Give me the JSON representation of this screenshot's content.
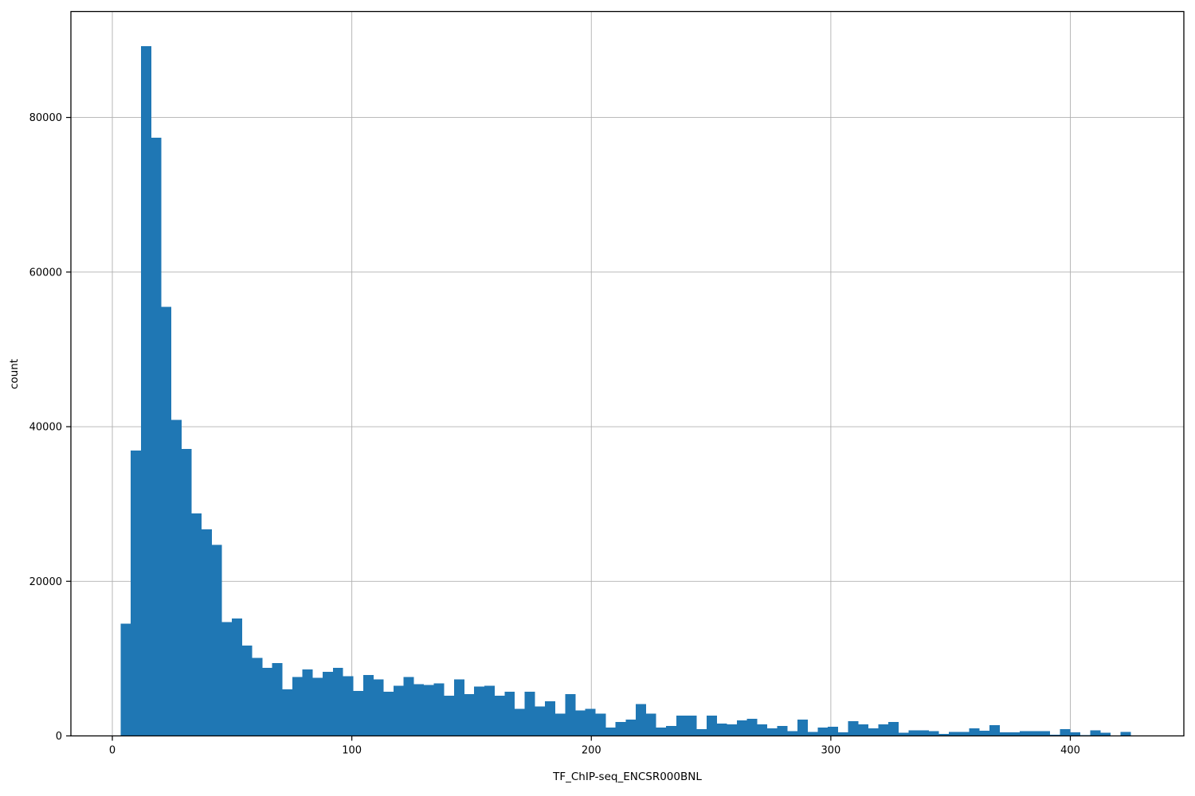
{
  "chart_data": {
    "type": "bar",
    "subtype": "histogram",
    "title": "",
    "xlabel": "TF_ChIP-seq_ENCSR000BNL",
    "ylabel": "count",
    "legend": null,
    "bar_color": "#1f77b4",
    "grid": true,
    "grid_color": "#b0b0b0",
    "spine_color": "#000000",
    "x_ticks": [
      0,
      100,
      200,
      300,
      400
    ],
    "y_ticks": [
      0,
      20000,
      40000,
      60000,
      80000
    ],
    "xlim": [
      -17.3,
      447.4
    ],
    "ylim": [
      0,
      93700
    ],
    "bin_start": 3.5,
    "bin_width": 4.217,
    "counts": [
      14500,
      36900,
      89200,
      77400,
      55500,
      40900,
      37100,
      28800,
      26700,
      24700,
      14700,
      15200,
      11700,
      10100,
      8800,
      9400,
      6000,
      7600,
      8600,
      7500,
      8300,
      8800,
      7700,
      5800,
      7900,
      7300,
      5700,
      6500,
      7600,
      6700,
      6600,
      6800,
      5200,
      7300,
      5400,
      6400,
      6500,
      5200,
      5700,
      3500,
      5700,
      3800,
      4500,
      2900,
      5400,
      3300,
      3500,
      2900,
      1100,
      1800,
      2100,
      4100,
      2900,
      1100,
      1300,
      2600,
      2600,
      900,
      2600,
      1600,
      1500,
      2000,
      2200,
      1500,
      1000,
      1300,
      600,
      2100,
      500,
      1100,
      1200,
      450,
      1900,
      1500,
      1000,
      1500,
      1800,
      400,
      700,
      700,
      600,
      250,
      500,
      500,
      1000,
      650,
      1400,
      450,
      450,
      600,
      600,
      600,
      150,
      900,
      450,
      100,
      700,
      400,
      50,
      500
    ]
  }
}
